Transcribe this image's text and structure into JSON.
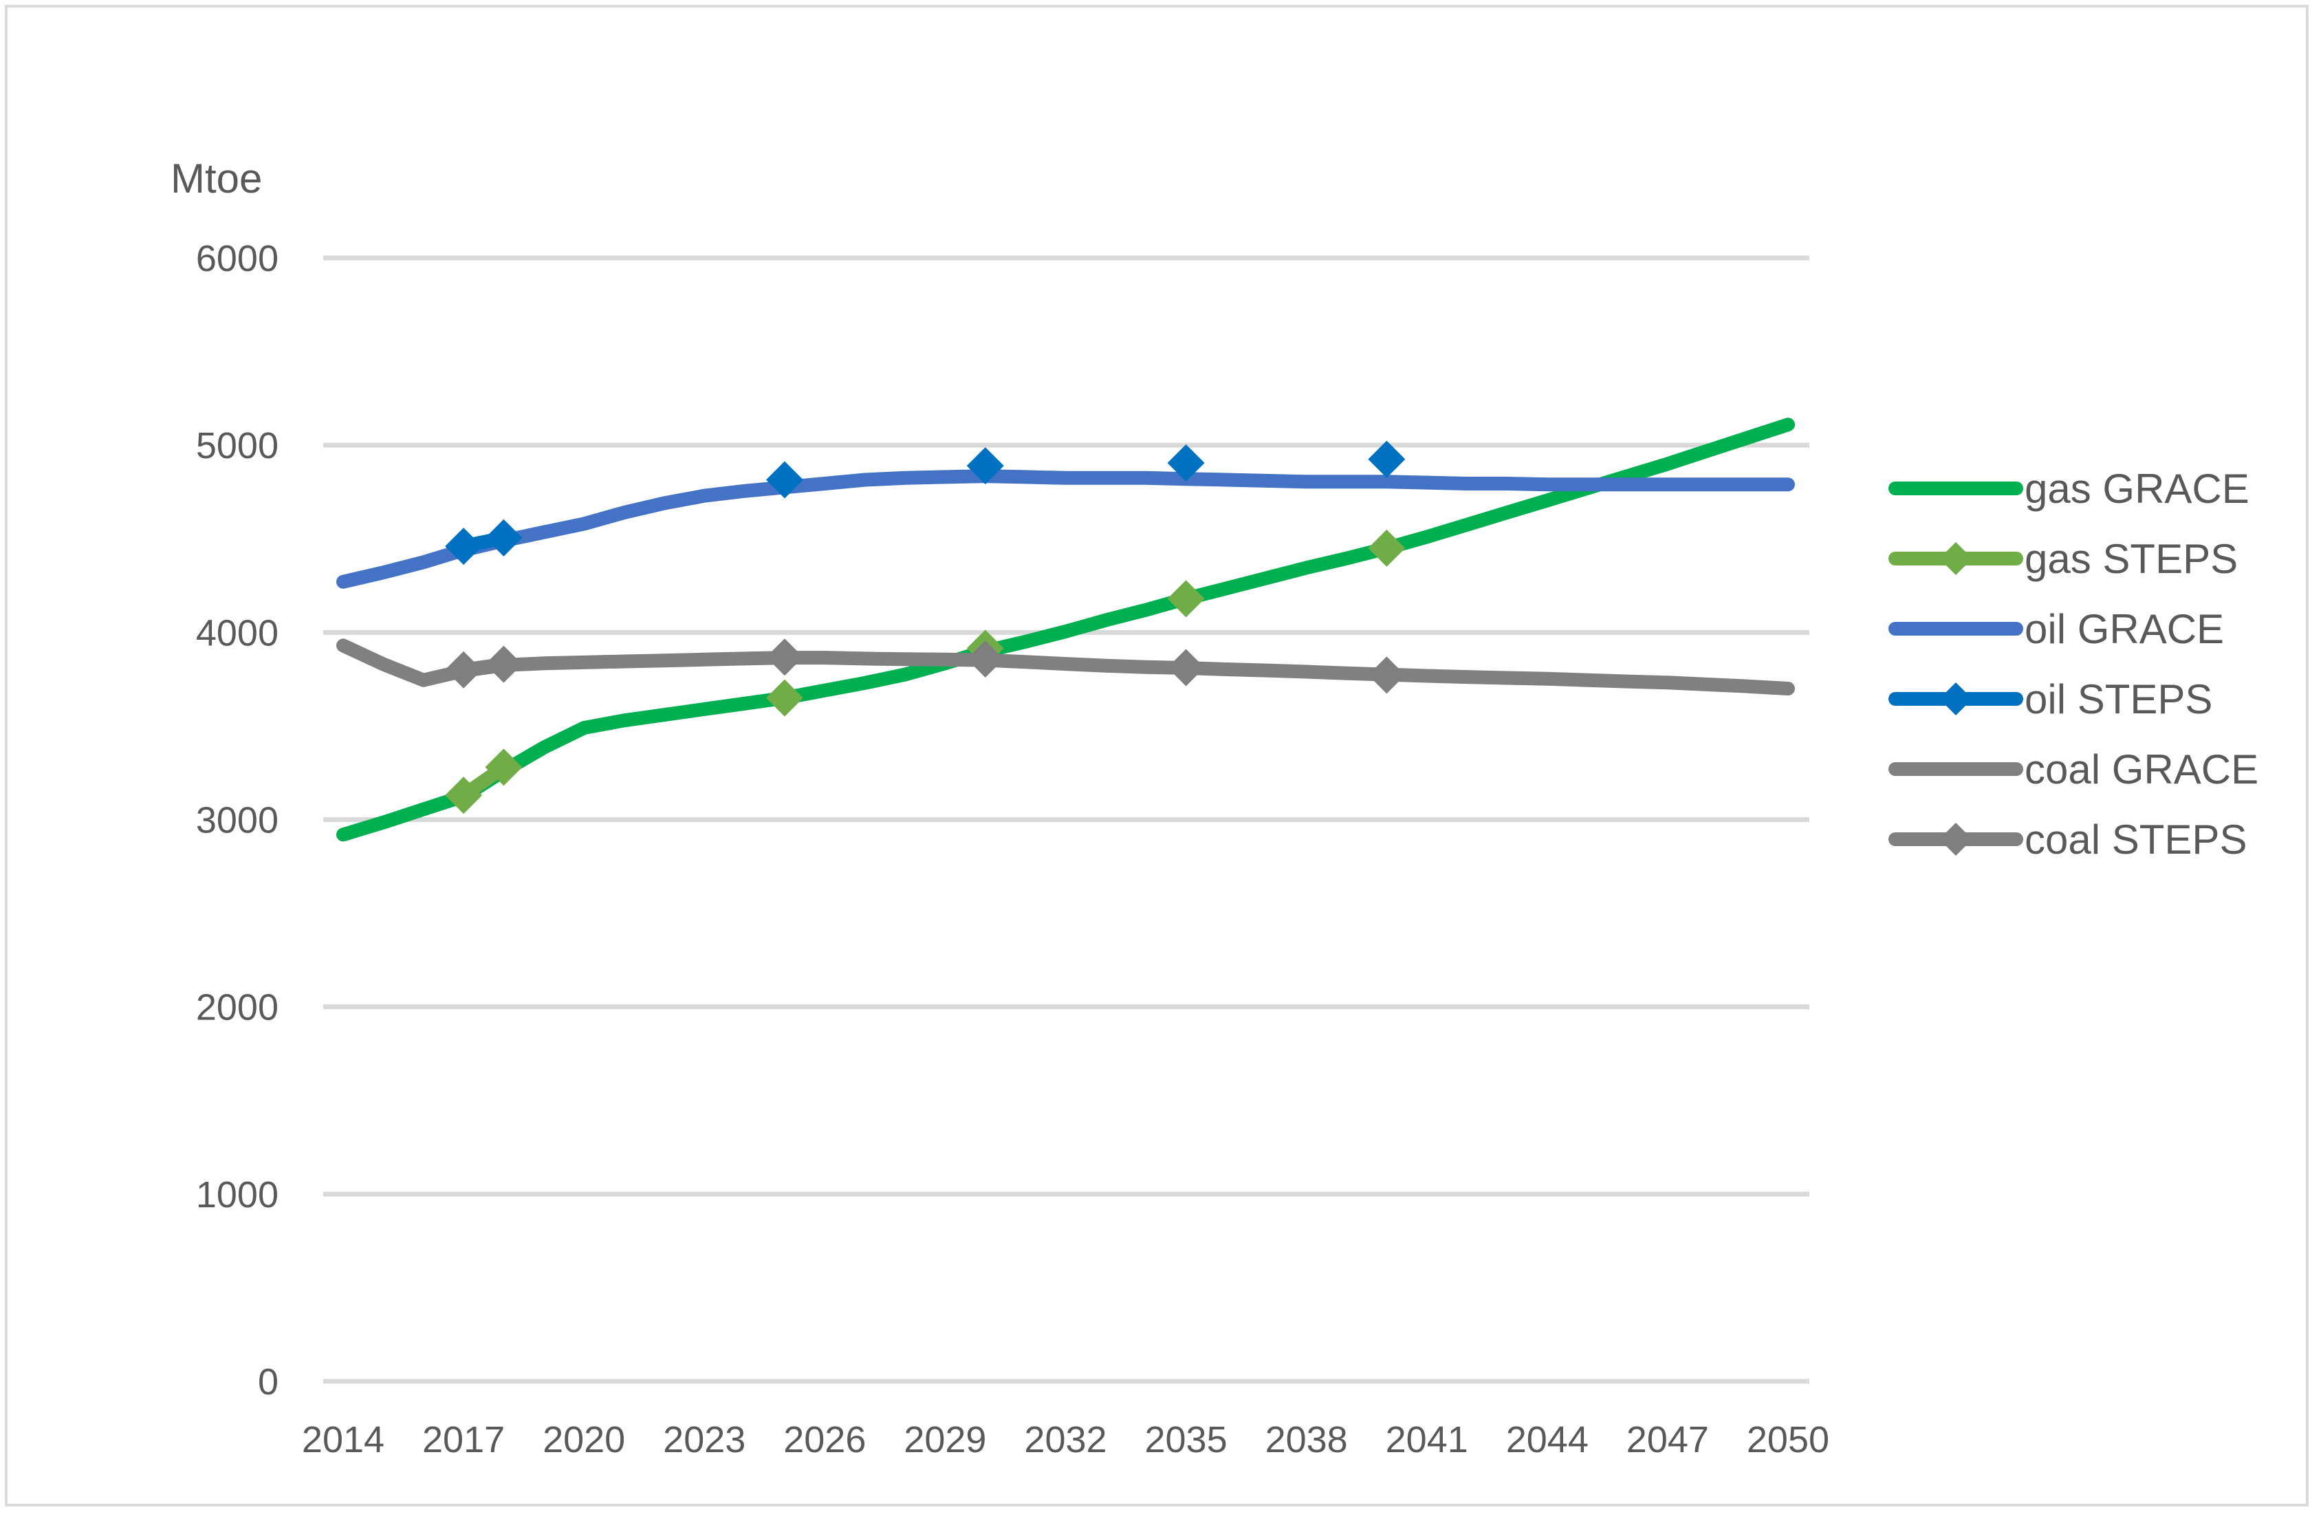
{
  "title": "Mtoe",
  "colors": {
    "axis_text": "#595959",
    "gridline": "#D9D9D9",
    "frame_border": "#DBDBDB",
    "gas_grace": "#00B050",
    "gas_steps": "#70AD47",
    "oil_grace": "#4472C4",
    "oil_steps": "#0070C0",
    "coal_grace": "#808080",
    "coal_steps": "#7F7F7F"
  },
  "chart_data": {
    "type": "line",
    "title": "Mtoe",
    "xlabel": "",
    "ylabel": "Mtoe",
    "xlim": [
      2014,
      2050
    ],
    "ylim": [
      0,
      6000
    ],
    "grid": true,
    "legend_position": "right",
    "x_tick_labels": [
      "2014",
      "2017",
      "2020",
      "2023",
      "2026",
      "2029",
      "2032",
      "2035",
      "2038",
      "2041",
      "2044",
      "2047",
      "2050"
    ],
    "x_ticks": [
      2014,
      2017,
      2020,
      2023,
      2026,
      2029,
      2032,
      2035,
      2038,
      2041,
      2044,
      2047,
      2050
    ],
    "y_ticks": [
      0,
      1000,
      2000,
      3000,
      4000,
      5000,
      6000
    ],
    "y_tick_labels": [
      "0",
      "1000",
      "2000",
      "3000",
      "4000",
      "5000",
      "6000"
    ],
    "series": [
      {
        "name": "gas GRACE",
        "color": "#00B050",
        "marker": "none",
        "line_mode": "full",
        "points": [
          [
            2014,
            2920
          ],
          [
            2015,
            2985
          ],
          [
            2016,
            3055
          ],
          [
            2017,
            3125
          ],
          [
            2018,
            3260
          ],
          [
            2019,
            3385
          ],
          [
            2020,
            3490
          ],
          [
            2021,
            3530
          ],
          [
            2022,
            3560
          ],
          [
            2023,
            3590
          ],
          [
            2024,
            3620
          ],
          [
            2025,
            3650
          ],
          [
            2026,
            3690
          ],
          [
            2027,
            3730
          ],
          [
            2028,
            3775
          ],
          [
            2029,
            3835
          ],
          [
            2030,
            3900
          ],
          [
            2031,
            3950
          ],
          [
            2032,
            4005
          ],
          [
            2033,
            4065
          ],
          [
            2034,
            4120
          ],
          [
            2035,
            4180
          ],
          [
            2036,
            4235
          ],
          [
            2037,
            4290
          ],
          [
            2038,
            4345
          ],
          [
            2039,
            4395
          ],
          [
            2040,
            4450
          ],
          [
            2041,
            4510
          ],
          [
            2042,
            4575
          ],
          [
            2043,
            4640
          ],
          [
            2044,
            4705
          ],
          [
            2045,
            4770
          ],
          [
            2046,
            4835
          ],
          [
            2047,
            4900
          ],
          [
            2048,
            4970
          ],
          [
            2049,
            5040
          ],
          [
            2050,
            5110
          ]
        ]
      },
      {
        "name": "gas STEPS",
        "color": "#70AD47",
        "marker": "diamond",
        "line_mode": "adjacent-only",
        "points": [
          [
            2017,
            3130
          ],
          [
            2018,
            3280
          ],
          [
            2025,
            3650
          ],
          [
            2030,
            3915
          ],
          [
            2035,
            4180
          ],
          [
            2040,
            4450
          ]
        ]
      },
      {
        "name": "oil GRACE",
        "color": "#4472C4",
        "marker": "none",
        "line_mode": "full",
        "points": [
          [
            2014,
            4270
          ],
          [
            2015,
            4320
          ],
          [
            2016,
            4375
          ],
          [
            2017,
            4440
          ],
          [
            2018,
            4490
          ],
          [
            2019,
            4535
          ],
          [
            2020,
            4580
          ],
          [
            2021,
            4640
          ],
          [
            2022,
            4690
          ],
          [
            2023,
            4730
          ],
          [
            2024,
            4755
          ],
          [
            2025,
            4775
          ],
          [
            2026,
            4795
          ],
          [
            2027,
            4815
          ],
          [
            2028,
            4825
          ],
          [
            2029,
            4830
          ],
          [
            2030,
            4835
          ],
          [
            2031,
            4830
          ],
          [
            2032,
            4825
          ],
          [
            2033,
            4825
          ],
          [
            2034,
            4825
          ],
          [
            2035,
            4820
          ],
          [
            2036,
            4815
          ],
          [
            2037,
            4810
          ],
          [
            2038,
            4805
          ],
          [
            2039,
            4805
          ],
          [
            2040,
            4805
          ],
          [
            2041,
            4800
          ],
          [
            2042,
            4795
          ],
          [
            2043,
            4795
          ],
          [
            2044,
            4790
          ],
          [
            2045,
            4790
          ],
          [
            2046,
            4790
          ],
          [
            2047,
            4790
          ],
          [
            2048,
            4790
          ],
          [
            2049,
            4790
          ],
          [
            2050,
            4790
          ]
        ]
      },
      {
        "name": "oil STEPS",
        "color": "#0070C0",
        "marker": "diamond",
        "line_mode": "adjacent-only",
        "points": [
          [
            2017,
            4460
          ],
          [
            2018,
            4505
          ],
          [
            2025,
            4815
          ],
          [
            2030,
            4890
          ],
          [
            2035,
            4905
          ],
          [
            2040,
            4925
          ]
        ]
      },
      {
        "name": "coal GRACE",
        "color": "#808080",
        "marker": "none",
        "line_mode": "full",
        "points": [
          [
            2014,
            3930
          ],
          [
            2015,
            3830
          ],
          [
            2016,
            3745
          ],
          [
            2017,
            3795
          ],
          [
            2018,
            3825
          ],
          [
            2019,
            3835
          ],
          [
            2020,
            3840
          ],
          [
            2021,
            3845
          ],
          [
            2022,
            3850
          ],
          [
            2023,
            3855
          ],
          [
            2024,
            3860
          ],
          [
            2025,
            3865
          ],
          [
            2026,
            3865
          ],
          [
            2027,
            3860
          ],
          [
            2028,
            3857
          ],
          [
            2029,
            3855
          ],
          [
            2030,
            3852
          ],
          [
            2031,
            3842
          ],
          [
            2032,
            3832
          ],
          [
            2033,
            3822
          ],
          [
            2034,
            3815
          ],
          [
            2035,
            3810
          ],
          [
            2036,
            3803
          ],
          [
            2037,
            3797
          ],
          [
            2038,
            3790
          ],
          [
            2039,
            3782
          ],
          [
            2040,
            3775
          ],
          [
            2041,
            3768
          ],
          [
            2042,
            3762
          ],
          [
            2043,
            3757
          ],
          [
            2044,
            3752
          ],
          [
            2045,
            3745
          ],
          [
            2046,
            3738
          ],
          [
            2047,
            3732
          ],
          [
            2048,
            3722
          ],
          [
            2049,
            3712
          ],
          [
            2050,
            3700
          ]
        ]
      },
      {
        "name": "coal STEPS",
        "color": "#7F7F7F",
        "marker": "diamond",
        "line_mode": "adjacent-only",
        "points": [
          [
            2017,
            3800
          ],
          [
            2018,
            3830
          ],
          [
            2025,
            3868
          ],
          [
            2030,
            3858
          ],
          [
            2035,
            3812
          ],
          [
            2040,
            3772
          ]
        ]
      }
    ]
  }
}
